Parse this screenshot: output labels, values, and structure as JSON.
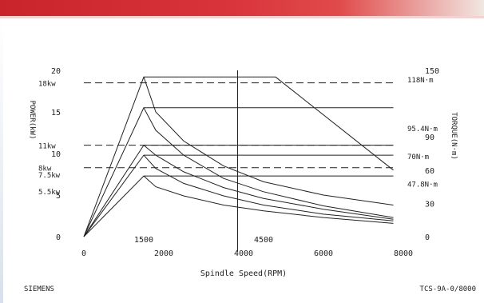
{
  "chart_data": {
    "type": "line",
    "xlabel": "Spindle Speed(RPM)",
    "ylabel_left": "POWER(kW)",
    "ylabel_right": "TORQUE(N·m)",
    "xlim": [
      0,
      8000
    ],
    "ylim": [
      0,
      20
    ],
    "y2lim": [
      0,
      150
    ],
    "x_ticks": [
      {
        "value": 0,
        "label": "0",
        "row": 2
      },
      {
        "value": 1500,
        "label": "1500",
        "row": 1
      },
      {
        "value": 2000,
        "label": "2000",
        "row": 2
      },
      {
        "value": 4000,
        "label": "4000",
        "row": 2
      },
      {
        "value": 4500,
        "label": "4500",
        "row": 1
      },
      {
        "value": 6000,
        "label": "6000",
        "row": 2
      },
      {
        "value": 8000,
        "label": "8000",
        "row": 2
      }
    ],
    "y_ticks_left": [
      {
        "value": 0,
        "label": "0"
      },
      {
        "value": 5,
        "label": "5"
      },
      {
        "value": 10,
        "label": "10"
      },
      {
        "value": 15,
        "label": "15"
      },
      {
        "value": 20,
        "label": "20"
      }
    ],
    "y_ticks_right": [
      {
        "value": 0,
        "label": "0"
      },
      {
        "value": 30,
        "label": "30"
      },
      {
        "value": 60,
        "label": "60"
      },
      {
        "value": 90,
        "label": "90"
      },
      {
        "value": 150,
        "label": "150"
      }
    ],
    "power_labels": [
      {
        "value": 18.5,
        "label": "18kw"
      },
      {
        "value": 11,
        "label": "11kw"
      },
      {
        "value": 8.3,
        "label": "8kw"
      },
      {
        "value": 7.5,
        "label": "7.5kw"
      },
      {
        "value": 5.5,
        "label": "5.5kw"
      }
    ],
    "torque_labels": [
      {
        "value": 142,
        "label": "118N·m"
      },
      {
        "value": 98,
        "label": "95.4N·m"
      },
      {
        "value": 73,
        "label": "70N·m"
      },
      {
        "value": 47.8,
        "label": "47.8N·m"
      }
    ],
    "vertical_marker": {
      "x": 3850,
      "y_top": 20,
      "y_bottom": -1.8
    },
    "series": [
      {
        "style": "solid",
        "x": [
          0,
          1500,
          4800,
          7750
        ],
        "y": [
          0,
          19.2,
          19.2,
          8.0
        ]
      },
      {
        "style": "solid",
        "x": [
          0,
          1500,
          7750
        ],
        "y": [
          0,
          15.5,
          15.5
        ]
      },
      {
        "style": "solid",
        "x": [
          0,
          1500,
          7750
        ],
        "y": [
          0,
          11.0,
          11.0
        ]
      },
      {
        "style": "solid",
        "x": [
          0,
          1500,
          7750
        ],
        "y": [
          0,
          9.8,
          9.8
        ]
      },
      {
        "style": "solid",
        "x": [
          0,
          1500,
          7750
        ],
        "y": [
          0,
          7.3,
          7.3
        ]
      },
      {
        "style": "solid",
        "x": [
          1500,
          1800,
          2500,
          3500,
          4500,
          6000,
          7750
        ],
        "y": [
          19.2,
          15.0,
          11.5,
          8.5,
          6.6,
          5.0,
          3.8
        ]
      },
      {
        "style": "solid",
        "x": [
          1500,
          1800,
          2500,
          3500,
          4500,
          6000,
          7750
        ],
        "y": [
          15.5,
          12.8,
          9.8,
          7.0,
          5.4,
          3.7,
          2.3
        ]
      },
      {
        "style": "solid",
        "x": [
          1500,
          1800,
          2500,
          3500,
          4500,
          6000,
          7750
        ],
        "y": [
          11.0,
          9.8,
          7.8,
          5.9,
          4.6,
          3.3,
          2.1
        ]
      },
      {
        "style": "solid",
        "x": [
          1500,
          1800,
          2500,
          3500,
          4500,
          6000,
          7750
        ],
        "y": [
          9.8,
          8.2,
          6.4,
          4.9,
          3.8,
          2.7,
          1.9
        ]
      },
      {
        "style": "solid",
        "x": [
          1500,
          1800,
          2500,
          3500,
          4500,
          6000,
          7750
        ],
        "y": [
          7.3,
          6.0,
          4.9,
          3.8,
          3.1,
          2.3,
          1.6
        ]
      },
      {
        "style": "dashed",
        "x": [
          0,
          7750
        ],
        "y": [
          18.5,
          18.5
        ]
      },
      {
        "style": "dashed",
        "x": [
          0,
          7750
        ],
        "y": [
          11.0,
          11.0
        ]
      },
      {
        "style": "dashed",
        "x": [
          0,
          7750
        ],
        "y": [
          8.3,
          8.3
        ]
      }
    ],
    "grid": false,
    "legend": "none"
  },
  "footer": {
    "left": "SIEMENS",
    "right": "TCS-9A-0/8000"
  }
}
